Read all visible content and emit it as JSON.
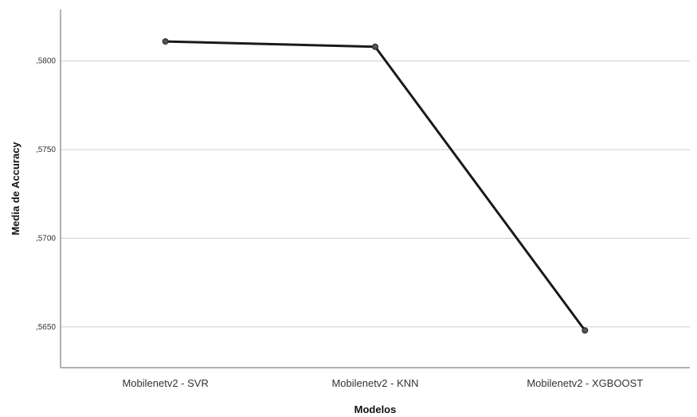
{
  "chart_data": {
    "type": "line",
    "title": "",
    "xlabel": "Modelos",
    "ylabel": "Media de Accuracy",
    "categories": [
      "Mobilenetv2 - SVR",
      "Mobilenetv2 - KNN",
      "Mobilenetv2 - XGBOOST"
    ],
    "series": [
      {
        "values": [
          0.5811,
          0.5808,
          0.5648
        ]
      }
    ],
    "y_ticks": [
      0.565,
      0.57,
      0.575,
      0.58
    ],
    "y_tick_labels": [
      ",5650",
      ",5700",
      ",5750",
      ",5800"
    ],
    "ylim": [
      0.5627,
      0.5829
    ],
    "grid": true,
    "line_color": "#1a1a1a",
    "marker_color": "#555555",
    "grid_color": "#d0d0d0",
    "axis_color": "#666666"
  }
}
